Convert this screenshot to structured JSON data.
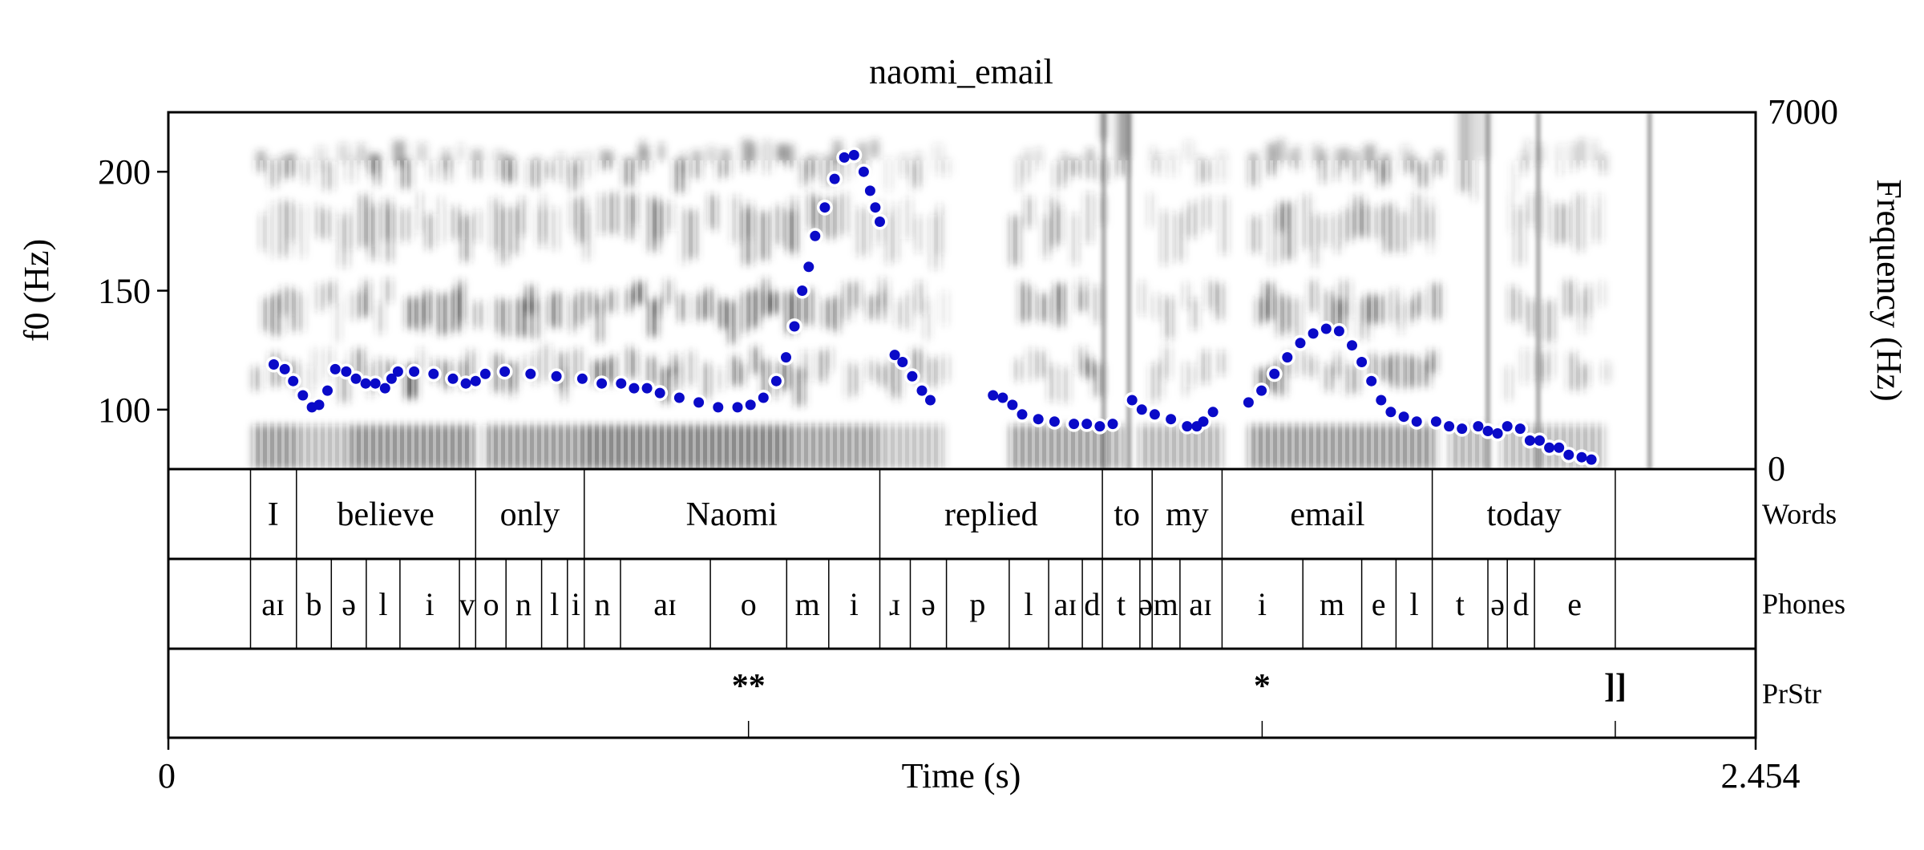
{
  "chart_data": {
    "type": "line",
    "title": "naomi_email",
    "xlabel": "Time (s)",
    "ylabel_left": "f0 (Hz)",
    "ylabel_right": "Frequency (Hz)",
    "xlim": [
      0,
      2.454
    ],
    "ylim_left": [
      75,
      225
    ],
    "ylim_right": [
      0,
      7000
    ],
    "x_tick_labels": [
      "0",
      "2.454"
    ],
    "y_left_ticks": [
      100,
      150,
      200
    ],
    "y_right_tick_labels": [
      "0",
      "7000"
    ],
    "line_color": "#0a0ac8",
    "f0_segments": [
      [
        [
          0.163,
          119
        ],
        [
          0.18,
          117
        ],
        [
          0.193,
          112
        ],
        [
          0.208,
          106
        ],
        [
          0.222,
          101
        ],
        [
          0.233,
          102
        ],
        [
          0.246,
          108
        ],
        [
          0.258,
          117
        ],
        [
          0.275,
          116
        ],
        [
          0.29,
          113
        ],
        [
          0.305,
          111
        ],
        [
          0.32,
          111
        ],
        [
          0.335,
          109
        ],
        [
          0.345,
          113
        ],
        [
          0.355,
          116
        ],
        [
          0.38,
          116
        ],
        [
          0.41,
          115
        ],
        [
          0.44,
          113
        ],
        [
          0.46,
          111
        ],
        [
          0.475,
          112
        ],
        [
          0.49,
          115
        ],
        [
          0.52,
          116
        ],
        [
          0.56,
          115
        ],
        [
          0.6,
          114
        ],
        [
          0.64,
          113
        ],
        [
          0.67,
          111
        ],
        [
          0.7,
          111
        ],
        [
          0.72,
          109
        ],
        [
          0.74,
          109
        ],
        [
          0.76,
          107
        ],
        [
          0.79,
          105
        ],
        [
          0.82,
          103
        ],
        [
          0.85,
          101
        ],
        [
          0.88,
          101
        ],
        [
          0.9,
          102
        ],
        [
          0.92,
          105
        ],
        [
          0.94,
          112
        ],
        [
          0.955,
          122
        ],
        [
          0.968,
          135
        ],
        [
          0.98,
          150
        ],
        [
          0.99,
          160
        ],
        [
          1.0,
          173
        ],
        [
          1.015,
          185
        ],
        [
          1.03,
          197
        ],
        [
          1.045,
          206
        ],
        [
          1.06,
          207
        ],
        [
          1.075,
          200
        ],
        [
          1.085,
          192
        ],
        [
          1.093,
          185
        ],
        [
          1.1,
          179
        ]
      ],
      [
        [
          1.123,
          123
        ],
        [
          1.135,
          120
        ],
        [
          1.15,
          114
        ],
        [
          1.165,
          108
        ],
        [
          1.178,
          104
        ]
      ],
      [
        [
          1.275,
          106
        ],
        [
          1.29,
          105
        ],
        [
          1.305,
          102
        ],
        [
          1.32,
          98
        ],
        [
          1.345,
          96
        ],
        [
          1.37,
          95
        ],
        [
          1.4,
          94
        ],
        [
          1.42,
          94
        ],
        [
          1.44,
          93
        ],
        [
          1.46,
          94
        ]
      ],
      [
        [
          1.49,
          104
        ],
        [
          1.505,
          100
        ],
        [
          1.525,
          98
        ],
        [
          1.55,
          96
        ],
        [
          1.575,
          93
        ],
        [
          1.59,
          93
        ],
        [
          1.6,
          95
        ],
        [
          1.615,
          99
        ]
      ],
      [
        [
          1.67,
          103
        ],
        [
          1.69,
          108
        ],
        [
          1.71,
          115
        ],
        [
          1.73,
          122
        ],
        [
          1.75,
          128
        ],
        [
          1.77,
          132
        ],
        [
          1.79,
          134
        ],
        [
          1.81,
          133
        ],
        [
          1.83,
          127
        ],
        [
          1.845,
          120
        ],
        [
          1.86,
          112
        ],
        [
          1.875,
          104
        ],
        [
          1.89,
          99
        ],
        [
          1.91,
          97
        ],
        [
          1.93,
          95
        ],
        [
          1.96,
          95
        ],
        [
          1.98,
          93
        ],
        [
          2.0,
          92
        ]
      ],
      [
        [
          2.025,
          93
        ],
        [
          2.04,
          91
        ],
        [
          2.055,
          90
        ],
        [
          2.07,
          93
        ],
        [
          2.09,
          92
        ]
      ],
      [
        [
          2.105,
          87
        ],
        [
          2.12,
          87
        ],
        [
          2.135,
          84
        ],
        [
          2.15,
          84
        ],
        [
          2.165,
          81
        ],
        [
          2.185,
          80
        ],
        [
          2.2,
          79
        ]
      ]
    ]
  },
  "tiers": [
    {
      "name": "Words",
      "bounds": [
        0.127,
        0.198,
        0.475,
        0.643,
        1.1,
        1.444,
        1.521,
        1.629,
        1.954,
        2.237
      ],
      "labels": [
        {
          "t": 0.162,
          "text": "I"
        },
        {
          "t": 0.336,
          "text": "believe"
        },
        {
          "t": 0.559,
          "text": "only"
        },
        {
          "t": 0.871,
          "text": "Naomi"
        },
        {
          "t": 1.272,
          "text": "replied"
        },
        {
          "t": 1.482,
          "text": "to"
        },
        {
          "t": 1.575,
          "text": "my"
        },
        {
          "t": 1.792,
          "text": "email"
        },
        {
          "t": 2.096,
          "text": "today"
        }
      ]
    },
    {
      "name": "Phones",
      "bounds": [
        0.127,
        0.198,
        0.252,
        0.306,
        0.358,
        0.45,
        0.475,
        0.522,
        0.577,
        0.617,
        0.643,
        0.699,
        0.838,
        0.956,
        1.021,
        1.1,
        1.147,
        1.203,
        1.3,
        1.361,
        1.413,
        1.444,
        1.502,
        1.521,
        1.564,
        1.629,
        1.754,
        1.845,
        1.898,
        1.954,
        2.04,
        2.07,
        2.112,
        2.237
      ],
      "labels": [
        {
          "t": 0.162,
          "text": "aɪ"
        },
        {
          "t": 0.225,
          "text": "b"
        },
        {
          "t": 0.279,
          "text": "ə"
        },
        {
          "t": 0.332,
          "text": "l"
        },
        {
          "t": 0.404,
          "text": "i"
        },
        {
          "t": 0.462,
          "text": "v"
        },
        {
          "t": 0.499,
          "text": "o"
        },
        {
          "t": 0.549,
          "text": "n"
        },
        {
          "t": 0.597,
          "text": "l"
        },
        {
          "t": 0.63,
          "text": "i"
        },
        {
          "t": 0.671,
          "text": "n"
        },
        {
          "t": 0.768,
          "text": "aɪ"
        },
        {
          "t": 0.897,
          "text": "o"
        },
        {
          "t": 0.988,
          "text": "m"
        },
        {
          "t": 1.06,
          "text": "i"
        },
        {
          "t": 1.123,
          "text": "ɹ"
        },
        {
          "t": 1.175,
          "text": "ə"
        },
        {
          "t": 1.251,
          "text": "p"
        },
        {
          "t": 1.33,
          "text": "l"
        },
        {
          "t": 1.387,
          "text": "aɪ"
        },
        {
          "t": 1.428,
          "text": "d"
        },
        {
          "t": 1.473,
          "text": "t"
        },
        {
          "t": 1.511,
          "text": "ə"
        },
        {
          "t": 1.542,
          "text": "m"
        },
        {
          "t": 1.596,
          "text": "aɪ"
        },
        {
          "t": 1.691,
          "text": "i"
        },
        {
          "t": 1.799,
          "text": "m"
        },
        {
          "t": 1.871,
          "text": "e"
        },
        {
          "t": 1.926,
          "text": "l"
        },
        {
          "t": 1.997,
          "text": "t"
        },
        {
          "t": 2.055,
          "text": "ə"
        },
        {
          "t": 2.091,
          "text": "d"
        },
        {
          "t": 2.174,
          "text": "e"
        }
      ]
    },
    {
      "name": "PrStr",
      "points": [
        {
          "t": 0.897,
          "text": "**"
        },
        {
          "t": 1.691,
          "text": "*"
        },
        {
          "t": 2.237,
          "text": "]]"
        }
      ]
    }
  ]
}
